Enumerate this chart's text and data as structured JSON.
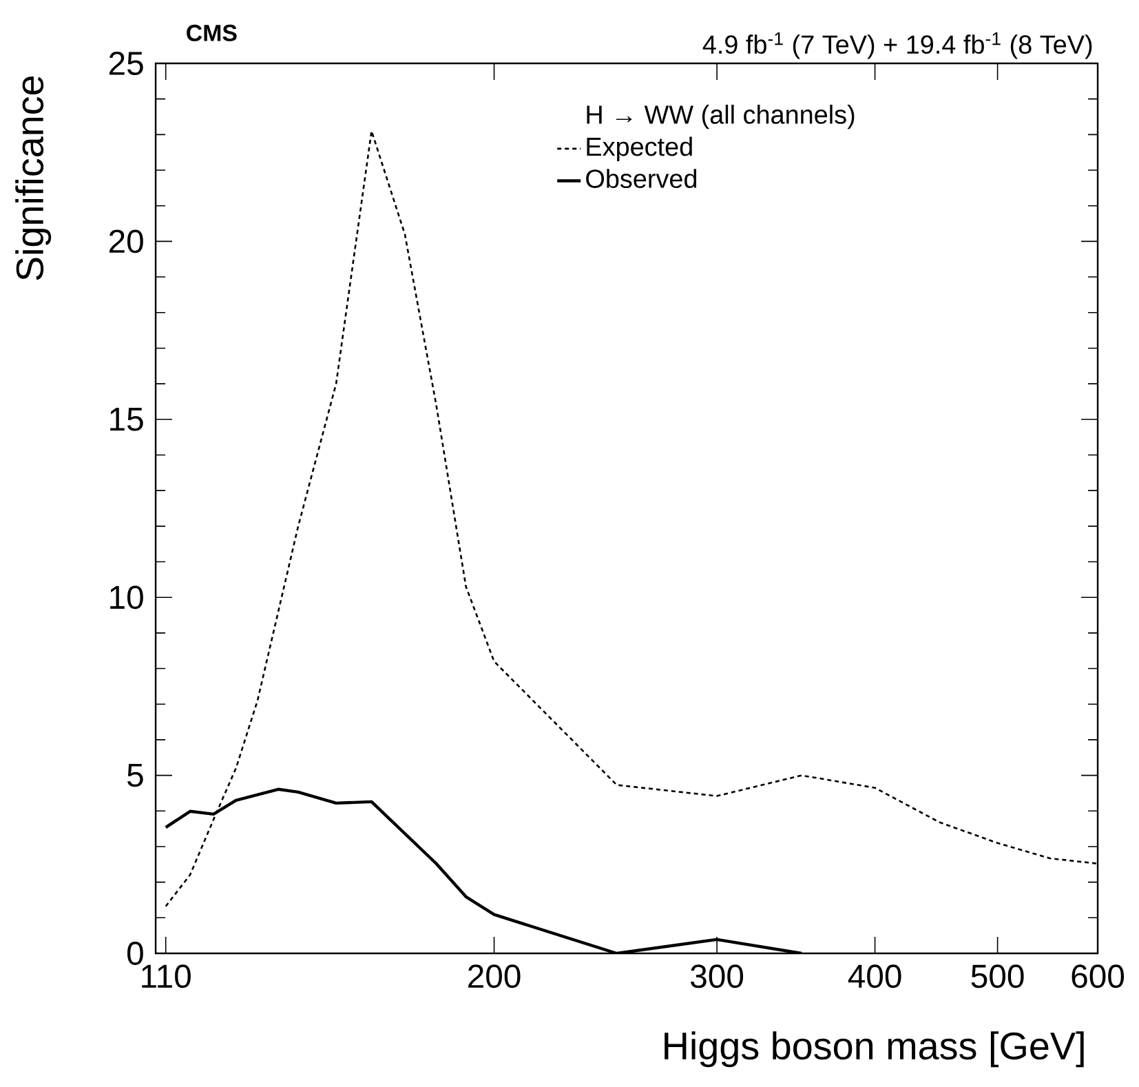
{
  "chart_data": {
    "type": "line",
    "title": "CMS",
    "subtitle": "4.9 fb$^{-1}$ (7 TeV) + 19.4 fb$^{-1}$ (8 TeV)",
    "xlabel": "Higgs boson mass [GeV]",
    "ylabel": "Significance",
    "legend_title": "H → WW (all channels)",
    "log": "x",
    "xlim": [
      108,
      600
    ],
    "ylim": [
      0,
      25
    ],
    "xticks": [
      110,
      200,
      300,
      400,
      500,
      600
    ],
    "yticks": [
      0,
      5,
      10,
      15,
      20,
      25
    ],
    "legend": "top right",
    "grid": false,
    "marker": "none",
    "series": [
      {
        "name": "Expected",
        "color": "#000000",
        "line_style": "dashed",
        "x": [
          110,
          115,
          120,
          125,
          130,
          140,
          150,
          160,
          170,
          180,
          190,
          200,
          250,
          300,
          350,
          400,
          450,
          500,
          550,
          600
        ],
        "values": [
          1.32,
          2.21,
          3.76,
          5.2,
          7.1,
          12.0,
          16.0,
          23.1,
          20.2,
          15.4,
          10.3,
          8.2,
          4.73,
          4.42,
          5.0,
          4.65,
          3.68,
          3.1,
          2.67,
          2.52
        ]
      },
      {
        "name": "Observed",
        "color": "#000000",
        "line_style": "solid",
        "x": [
          110,
          115,
          120,
          125,
          135,
          140,
          150,
          160,
          180,
          190,
          200,
          250,
          300,
          350
        ],
        "values": [
          3.54,
          3.99,
          3.91,
          4.3,
          4.61,
          4.53,
          4.22,
          4.26,
          2.52,
          1.59,
          1.09,
          0,
          0.39,
          0
        ]
      }
    ]
  }
}
